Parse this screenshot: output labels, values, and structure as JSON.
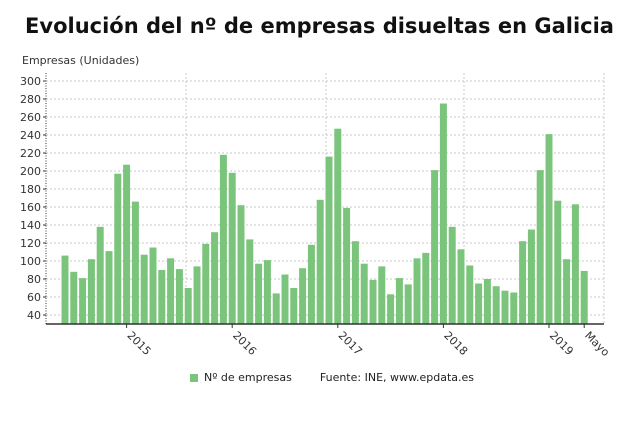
{
  "chart_data": {
    "type": "bar",
    "title": "Evolución del nº de empresas disueltas en Galicia",
    "ylabel": "Empresas (Unidades)",
    "xlabel": "",
    "ylim": [
      40,
      300
    ],
    "yticks": [
      40,
      60,
      80,
      100,
      120,
      140,
      160,
      180,
      200,
      220,
      240,
      260,
      280,
      300
    ],
    "x_tick_labels": [
      {
        "label": "2015",
        "index": 7
      },
      {
        "label": "2016",
        "index": 19
      },
      {
        "label": "2017",
        "index": 31
      },
      {
        "label": "2018",
        "index": 43
      },
      {
        "label": "2019",
        "index": 55
      },
      {
        "label": "Mayo",
        "index": 59
      }
    ],
    "categories": [
      "2014-06",
      "2014-07",
      "2014-08",
      "2014-09",
      "2014-10",
      "2014-11",
      "2014-12",
      "2015-01",
      "2015-02",
      "2015-03",
      "2015-04",
      "2015-05",
      "2015-06",
      "2015-07",
      "2015-08",
      "2015-09",
      "2015-10",
      "2015-11",
      "2015-12",
      "2016-01",
      "2016-02",
      "2016-03",
      "2016-04",
      "2016-05",
      "2016-06",
      "2016-07",
      "2016-08",
      "2016-09",
      "2016-10",
      "2016-11",
      "2016-12",
      "2017-01",
      "2017-02",
      "2017-03",
      "2017-04",
      "2017-05",
      "2017-06",
      "2017-07",
      "2017-08",
      "2017-09",
      "2017-10",
      "2017-11",
      "2017-12",
      "2018-01",
      "2018-02",
      "2018-03",
      "2018-04",
      "2018-05",
      "2018-06",
      "2018-07",
      "2018-08",
      "2018-09",
      "2018-10",
      "2018-11",
      "2018-12",
      "2019-01",
      "2019-02",
      "2019-03",
      "2019-04",
      "2019-05"
    ],
    "series": [
      {
        "name": "Nº de empresas",
        "color": "#7bc47b",
        "values": [
          106,
          88,
          81,
          102,
          138,
          111,
          197,
          207,
          166,
          107,
          115,
          90,
          103,
          91,
          70,
          94,
          119,
          132,
          218,
          198,
          162,
          124,
          97,
          101,
          64,
          85,
          70,
          92,
          118,
          168,
          216,
          247,
          159,
          122,
          97,
          79,
          94,
          63,
          81,
          74,
          103,
          109,
          201,
          275,
          138,
          113,
          95,
          75,
          80,
          72,
          67,
          65,
          122,
          135,
          201,
          241,
          167,
          102,
          163,
          89
        ]
      }
    ],
    "grid": true,
    "legend_position": "bottom"
  },
  "legend": {
    "label": "Nº de empresas",
    "source": "Fuente: INE, www.epdata.es"
  }
}
